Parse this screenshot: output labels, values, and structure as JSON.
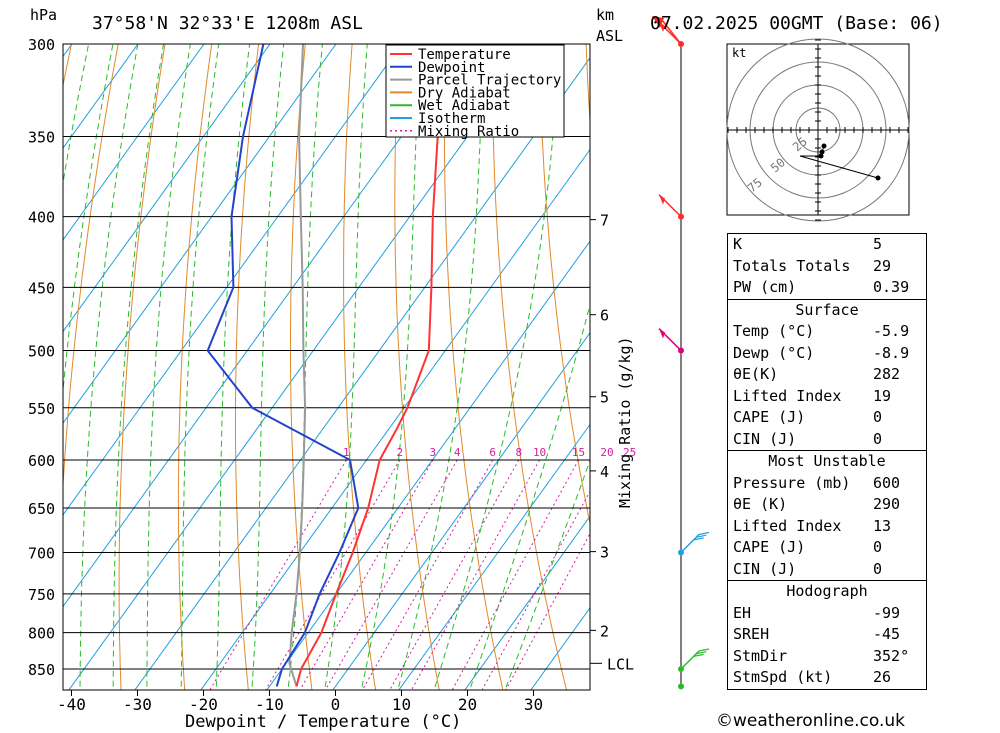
{
  "header": {
    "hpa_unit": "hPa",
    "location": "37°58'N  32°33'E  1208m  ASL",
    "km_label": "km",
    "asl_label": "ASL",
    "datetime": "07.02.2025  00GMT  (Base: 06)"
  },
  "legend": [
    {
      "label": "Temperature",
      "color": "#ff3333"
    },
    {
      "label": "Dewpoint",
      "color": "#2244cc"
    },
    {
      "label": "Parcel Trajectory",
      "color": "#999999"
    },
    {
      "label": "Dry Adiabat",
      "color": "#e08a2a"
    },
    {
      "label": "Wet Adiabat",
      "color": "#2aba2a"
    },
    {
      "label": "Isotherm",
      "color": "#22a0e0"
    },
    {
      "label": "Mixing Ratio",
      "color": "#d020a0"
    }
  ],
  "chart_data": {
    "type": "skew-t log-p",
    "xlabel": "Dewpoint / Temperature (°C)",
    "pressure_axis_unit": "hPa",
    "pressure_levels": [
      300,
      350,
      400,
      450,
      500,
      550,
      600,
      650,
      700,
      750,
      800,
      850
    ],
    "temperature_ticks": [
      -40,
      -30,
      -20,
      -10,
      0,
      10,
      20,
      30
    ],
    "height_ticks_km": [
      {
        "km": "7",
        "p": 402
      },
      {
        "km": "6",
        "p": 471
      },
      {
        "km": "5",
        "p": 540
      },
      {
        "km": "4",
        "p": 611
      },
      {
        "km": "3",
        "p": 699
      },
      {
        "km": "2",
        "p": 797
      }
    ],
    "lcl": {
      "label": "LCL",
      "p": 842
    },
    "mixing_ratio_axis_label": "Mixing Ratio (g/kg)",
    "mixing_ratio_labels": [
      "1",
      "2",
      "3",
      "4",
      "6",
      "8",
      "10",
      "15",
      "20",
      "25"
    ],
    "temperature_profile": [
      {
        "p": 875,
        "t": -5.9
      },
      {
        "p": 850,
        "t": -7.1
      },
      {
        "p": 800,
        "t": -8.0
      },
      {
        "p": 750,
        "t": -10.0
      },
      {
        "p": 700,
        "t": -12.0
      },
      {
        "p": 650,
        "t": -14.5
      },
      {
        "p": 600,
        "t": -18.0
      },
      {
        "p": 570,
        "t": -18.8
      },
      {
        "p": 550,
        "t": -19.5
      },
      {
        "p": 500,
        "t": -22.5
      },
      {
        "p": 450,
        "t": -29.0
      },
      {
        "p": 400,
        "t": -36.5
      },
      {
        "p": 350,
        "t": -44.5
      },
      {
        "p": 300,
        "t": -53.5
      }
    ],
    "dewpoint_profile": [
      {
        "p": 875,
        "t": -8.9
      },
      {
        "p": 850,
        "t": -10.0
      },
      {
        "p": 800,
        "t": -10.5
      },
      {
        "p": 750,
        "t": -12.5
      },
      {
        "p": 700,
        "t": -14.0
      },
      {
        "p": 650,
        "t": -16.0
      },
      {
        "p": 600,
        "t": -22.5
      },
      {
        "p": 550,
        "t": -43.0
      },
      {
        "p": 500,
        "t": -56.0
      },
      {
        "p": 450,
        "t": -59.0
      },
      {
        "p": 400,
        "t": -67.0
      },
      {
        "p": 350,
        "t": -74.0
      },
      {
        "p": 300,
        "t": -81.0
      }
    ],
    "parcel_trajectory": [
      {
        "p": 875,
        "t": -5.9
      },
      {
        "p": 842,
        "t": -9.5
      },
      {
        "p": 800,
        "t": -12.5
      },
      {
        "p": 750,
        "t": -16.0
      },
      {
        "p": 700,
        "t": -20.0
      },
      {
        "p": 650,
        "t": -24.5
      },
      {
        "p": 600,
        "t": -29.5
      },
      {
        "p": 550,
        "t": -35.0
      },
      {
        "p": 500,
        "t": -41.5
      },
      {
        "p": 450,
        "t": -48.5
      },
      {
        "p": 400,
        "t": -56.5
      },
      {
        "p": 350,
        "t": -65.5
      },
      {
        "p": 300,
        "t": -75.0
      }
    ],
    "wind_levels_hpa": [
      300,
      400,
      500,
      700,
      850,
      875
    ]
  },
  "hodograph": {
    "unit": "kt",
    "ring_labels": [
      "25",
      "50",
      "75"
    ]
  },
  "indices": {
    "general": [
      {
        "label": "K",
        "value": "5"
      },
      {
        "label": "Totals Totals",
        "value": "29"
      },
      {
        "label": "PW (cm)",
        "value": "0.39"
      }
    ],
    "surface": {
      "title": "Surface",
      "rows": [
        {
          "label": "Temp (°C)",
          "value": "-5.9"
        },
        {
          "label": "Dewp (°C)",
          "value": "-8.9"
        },
        {
          "label": "θE(K)",
          "value": "282"
        },
        {
          "label": "Lifted Index",
          "value": "19"
        },
        {
          "label": "CAPE (J)",
          "value": "0"
        },
        {
          "label": "CIN (J)",
          "value": "0"
        }
      ]
    },
    "most_unstable": {
      "title": "Most Unstable",
      "rows": [
        {
          "label": "Pressure (mb)",
          "value": "600"
        },
        {
          "label": "θE (K)",
          "value": "290"
        },
        {
          "label": "Lifted Index",
          "value": "13"
        },
        {
          "label": "CAPE (J)",
          "value": "0"
        },
        {
          "label": "CIN (J)",
          "value": "0"
        }
      ]
    },
    "hodograph": {
      "title": "Hodograph",
      "rows": [
        {
          "label": "EH",
          "value": "-99"
        },
        {
          "label": "SREH",
          "value": "-45"
        },
        {
          "label": "StmDir",
          "value": "352°"
        },
        {
          "label": "StmSpd (kt)",
          "value": "26"
        }
      ]
    }
  },
  "watermark": "©weatheronline.co.uk"
}
